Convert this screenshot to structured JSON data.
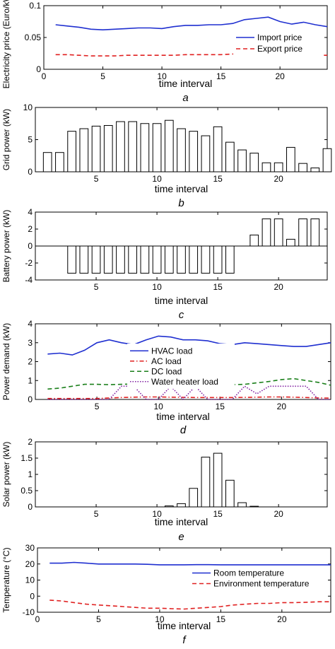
{
  "chart_data": [
    {
      "type": "line",
      "panel_label": "a",
      "xlabel": "time interval",
      "ylabel": "Electricity price (Euro/kWh)",
      "xlim": [
        0,
        24
      ],
      "ylim": [
        0,
        0.1
      ],
      "xticks": [
        0,
        5,
        10,
        15,
        20
      ],
      "yticks": [
        0,
        0.05,
        0.1
      ],
      "yticklabels": [
        "0",
        "0.05",
        "0.1"
      ],
      "legend_position": "lower-right",
      "series": [
        {
          "name": "Import price",
          "color": "#1f2fd0",
          "dash": "solid",
          "x": [
            1,
            2,
            3,
            4,
            5,
            6,
            7,
            8,
            9,
            10,
            11,
            12,
            13,
            14,
            15,
            16,
            17,
            18,
            19,
            20,
            21,
            22,
            23,
            24
          ],
          "values": [
            0.07,
            0.068,
            0.066,
            0.063,
            0.062,
            0.063,
            0.064,
            0.065,
            0.065,
            0.064,
            0.067,
            0.069,
            0.069,
            0.07,
            0.07,
            0.072,
            0.078,
            0.08,
            0.082,
            0.075,
            0.071,
            0.074,
            0.07,
            0.067
          ]
        },
        {
          "name": "Export price",
          "color": "#e02020",
          "dash": "dashed",
          "x": [
            1,
            2,
            3,
            4,
            5,
            6,
            7,
            8,
            9,
            10,
            11,
            12,
            13,
            14,
            15,
            16,
            17,
            18,
            19,
            20,
            21,
            22,
            23,
            24
          ],
          "values": [
            0.023,
            0.023,
            0.022,
            0.021,
            0.021,
            0.021,
            0.022,
            0.022,
            0.022,
            0.022,
            0.022,
            0.023,
            0.023,
            0.023,
            0.023,
            0.024,
            0.025,
            0.026,
            0.027,
            0.025,
            0.023,
            0.023,
            0.022,
            0.022
          ]
        }
      ]
    },
    {
      "type": "bar",
      "panel_label": "b",
      "xlabel": "time interval",
      "ylabel": "Grid power (kW)",
      "xlim": [
        0,
        24
      ],
      "ylim": [
        0,
        10
      ],
      "xticks": [
        5,
        10,
        15,
        20
      ],
      "yticks": [
        0,
        5,
        10
      ],
      "x": [
        1,
        2,
        3,
        4,
        5,
        6,
        7,
        8,
        9,
        10,
        11,
        12,
        13,
        14,
        15,
        16,
        17,
        18,
        19,
        20,
        21,
        22,
        23,
        24
      ],
      "values": [
        3.0,
        3.0,
        6.3,
        6.7,
        7.1,
        7.2,
        7.8,
        7.8,
        7.5,
        7.5,
        8.0,
        6.7,
        6.3,
        5.6,
        7.0,
        4.6,
        3.4,
        2.9,
        1.4,
        1.4,
        3.8,
        1.3,
        0.6,
        3.6
      ]
    },
    {
      "type": "bar",
      "panel_label": "c",
      "xlabel": "time interval",
      "ylabel": "Battery power (kW)",
      "xlim": [
        0,
        24
      ],
      "ylim": [
        -4,
        4
      ],
      "xticks": [
        5,
        10,
        15,
        20
      ],
      "yticks": [
        -4,
        -2,
        0,
        2,
        4
      ],
      "x": [
        1,
        2,
        3,
        4,
        5,
        6,
        7,
        8,
        9,
        10,
        11,
        12,
        13,
        14,
        15,
        16,
        17,
        18,
        19,
        20,
        21,
        22,
        23,
        24
      ],
      "values": [
        0,
        0,
        -3.2,
        -3.2,
        -3.2,
        -3.2,
        -3.2,
        -3.2,
        -3.2,
        -3.2,
        -3.2,
        -3.2,
        -3.2,
        -3.2,
        -3.2,
        -3.2,
        0,
        1.3,
        3.2,
        3.2,
        0.8,
        3.2,
        3.2,
        0
      ]
    },
    {
      "type": "line",
      "panel_label": "d",
      "xlabel": "time interval",
      "ylabel": "Power demand (kW)",
      "xlim": [
        0,
        24
      ],
      "ylim": [
        0,
        4
      ],
      "xticks": [
        5,
        10,
        15,
        20
      ],
      "yticks": [
        0,
        1,
        2,
        3,
        4
      ],
      "legend_position": "lower-left",
      "series": [
        {
          "name": "HVAC load",
          "color": "#1f2fd0",
          "dash": "solid",
          "x": [
            1,
            2,
            3,
            4,
            5,
            6,
            7,
            8,
            9,
            10,
            11,
            12,
            13,
            14,
            15,
            16,
            17,
            18,
            19,
            20,
            21,
            22,
            23,
            24
          ],
          "values": [
            2.4,
            2.45,
            2.35,
            2.6,
            3.0,
            3.15,
            3.0,
            2.9,
            3.15,
            3.35,
            3.3,
            3.15,
            3.15,
            3.1,
            2.95,
            2.9,
            3.0,
            2.95,
            2.9,
            2.85,
            2.8,
            2.8,
            2.9,
            3.0
          ]
        },
        {
          "name": "AC load",
          "color": "#e02020",
          "dash": "dashdot",
          "x": [
            1,
            2,
            3,
            4,
            5,
            6,
            7,
            8,
            9,
            10,
            11,
            12,
            13,
            14,
            15,
            16,
            17,
            18,
            19,
            20,
            21,
            22,
            23,
            24
          ],
          "values": [
            0.05,
            0.05,
            0.05,
            0.05,
            0.05,
            0.08,
            0.1,
            0.12,
            0.13,
            0.13,
            0.12,
            0.11,
            0.1,
            0.1,
            0.1,
            0.1,
            0.11,
            0.12,
            0.13,
            0.13,
            0.12,
            0.1,
            0.08,
            0.07
          ]
        },
        {
          "name": "DC load",
          "color": "#1a7f1a",
          "dash": "dashed",
          "x": [
            1,
            2,
            3,
            4,
            5,
            6,
            7,
            8,
            9,
            10,
            11,
            12,
            13,
            14,
            15,
            16,
            17,
            18,
            19,
            20,
            21,
            22,
            23,
            24
          ],
          "values": [
            0.55,
            0.6,
            0.7,
            0.8,
            0.8,
            0.78,
            0.8,
            0.82,
            0.8,
            0.8,
            0.8,
            0.78,
            0.78,
            0.78,
            0.78,
            0.78,
            0.8,
            0.88,
            0.95,
            1.05,
            1.1,
            1.0,
            0.9,
            0.75
          ]
        },
        {
          "name": "Water heater load",
          "color": "#8020a0",
          "dash": "dotted",
          "x": [
            1,
            2,
            3,
            4,
            5,
            6,
            7,
            8,
            9,
            10,
            11,
            12,
            13,
            14,
            15,
            16,
            17,
            18,
            19,
            20,
            21,
            22,
            23,
            24
          ],
          "values": [
            0,
            0,
            0,
            0,
            0,
            0,
            0.7,
            0.7,
            0,
            0,
            0.7,
            0,
            0.7,
            0,
            0,
            0,
            0.7,
            0.3,
            0.7,
            0.7,
            0.7,
            0.7,
            0,
            0
          ]
        }
      ]
    },
    {
      "type": "bar",
      "panel_label": "e",
      "xlabel": "time interval",
      "ylabel": "Solar power (kW)",
      "xlim": [
        0,
        24
      ],
      "ylim": [
        0,
        2
      ],
      "xticks": [
        5,
        10,
        15,
        20
      ],
      "yticks": [
        0,
        0.5,
        1,
        1.5,
        2
      ],
      "yticklabels": [
        "0",
        "0.5",
        "1",
        "1.5",
        "2"
      ],
      "x": [
        1,
        2,
        3,
        4,
        5,
        6,
        7,
        8,
        9,
        10,
        11,
        12,
        13,
        14,
        15,
        16,
        17,
        18,
        19,
        20,
        21,
        22,
        23,
        24
      ],
      "values": [
        0,
        0,
        0,
        0,
        0,
        0,
        0,
        0,
        0,
        0,
        0.03,
        0.1,
        0.57,
        1.53,
        1.65,
        0.82,
        0.13,
        0.02,
        0,
        0,
        0,
        0,
        0,
        0
      ]
    },
    {
      "type": "line",
      "panel_label": "f",
      "xlabel": "time interval",
      "ylabel": "Temperature (°C)",
      "xlim": [
        0,
        24
      ],
      "ylim": [
        -10,
        30
      ],
      "xticks": [
        0,
        5,
        10,
        15,
        20
      ],
      "yticks": [
        -10,
        0,
        10,
        20,
        30
      ],
      "legend_position": "center-right",
      "series": [
        {
          "name": "Room temperature",
          "color": "#1f2fd0",
          "dash": "solid",
          "x": [
            1,
            2,
            3,
            4,
            5,
            6,
            7,
            8,
            9,
            10,
            11,
            12,
            13,
            14,
            15,
            16,
            17,
            18,
            19,
            20,
            21,
            22,
            23,
            24
          ],
          "values": [
            20.5,
            20.5,
            21,
            20.5,
            20,
            20,
            20,
            20,
            19.8,
            19.5,
            19.5,
            19.5,
            19.6,
            19.6,
            19.5,
            19.5,
            19.5,
            19.5,
            19.5,
            19.5,
            19.5,
            19.5,
            19.5,
            19.5
          ]
        },
        {
          "name": "Environment temperature",
          "color": "#e02020",
          "dash": "dashed",
          "x": [
            1,
            2,
            3,
            4,
            5,
            6,
            7,
            8,
            9,
            10,
            11,
            12,
            13,
            14,
            15,
            16,
            17,
            18,
            19,
            20,
            21,
            22,
            23,
            24
          ],
          "values": [
            -2.5,
            -3,
            -4,
            -5,
            -5.5,
            -6,
            -6.5,
            -7,
            -7.5,
            -7.5,
            -7.8,
            -8,
            -7.5,
            -7,
            -6.5,
            -5.5,
            -5,
            -4.5,
            -4.5,
            -4,
            -4,
            -3.8,
            -3.5,
            -3.5
          ]
        }
      ]
    }
  ]
}
